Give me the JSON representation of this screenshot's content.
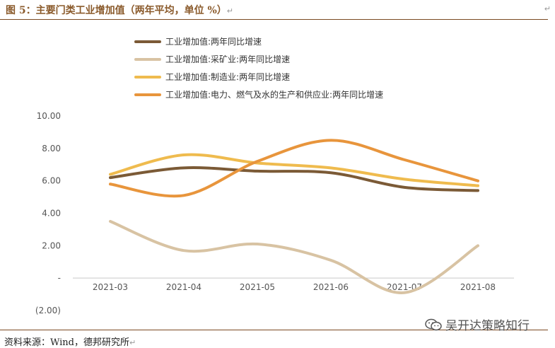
{
  "header": {
    "title": "图 5：主要门类工业增加值（两年平均，单位 %）",
    "mark": "↵"
  },
  "footer": {
    "source": "资料来源：Wind，德邦研究所",
    "mark": "↵",
    "watermark": "吴开达策略知行"
  },
  "colors": {
    "rule": "#7b4a22",
    "title": "#8a5a2b"
  },
  "chart_data": {
    "type": "line",
    "title": "",
    "xlabel": "",
    "ylabel": "",
    "categories": [
      "2021-03",
      "2021-04",
      "2021-05",
      "2021-06",
      "2021-07",
      "2021-08"
    ],
    "ylim": [
      -2,
      10
    ],
    "yticks": [
      "(2.00)",
      "-",
      "2.00",
      "4.00",
      "6.00",
      "8.00",
      "10.00"
    ],
    "grid": false,
    "legend_position": "top",
    "series": [
      {
        "name": "工业增加值:两年同比增速",
        "color": "#7b5a36",
        "values": [
          6.2,
          6.8,
          6.6,
          6.5,
          5.6,
          5.4
        ]
      },
      {
        "name": "工业增加值:采矿业:两年同比增速",
        "color": "#d8c3a3",
        "values": [
          3.5,
          1.7,
          2.1,
          1.1,
          -0.9,
          2.0
        ]
      },
      {
        "name": "工业增加值:制造业:两年同比增速",
        "color": "#efbb4e",
        "values": [
          6.4,
          7.6,
          7.1,
          6.8,
          6.1,
          5.7
        ]
      },
      {
        "name": "工业增加值:电力、燃气及水的生产和供应业:两年同比增速",
        "color": "#e8953c",
        "values": [
          5.8,
          5.1,
          7.2,
          8.5,
          7.3,
          6.0
        ]
      }
    ]
  }
}
